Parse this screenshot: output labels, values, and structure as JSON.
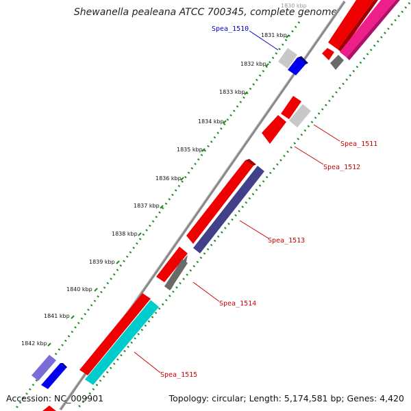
{
  "title": "Shewanella pealeana ATCC 700345, complete genome",
  "accession": "Accession: NC_009901",
  "summary": "Topology: circular; Length: 5,174,581 bp; Genes: 4,420",
  "ticks": [
    "1830 kbp",
    "1831 kbp",
    "1832 kbp",
    "1833 kbp",
    "1834 kbp",
    "1835 kbp",
    "1836 kbp",
    "1837 kbp",
    "1838 kbp",
    "1839 kbp",
    "1840 kbp",
    "1841 kbp",
    "1842 kbp"
  ],
  "gene_labels": [
    {
      "name": "Spea_1510",
      "color": "#0000cc"
    },
    {
      "name": "Spea_1511",
      "color": "#cc0000"
    },
    {
      "name": "Spea_1512",
      "color": "#cc0000"
    },
    {
      "name": "Spea_1513",
      "color": "#cc0000"
    },
    {
      "name": "Spea_1514",
      "color": "#cc0000"
    },
    {
      "name": "Spea_1515",
      "color": "#cc0000"
    }
  ],
  "colors": {
    "backbone": "#8a8a8a",
    "tick_dots": "#1e8a1e",
    "cds_red": "#ee0000",
    "cds_blue": "#0000ee",
    "cds_gray": "#c8c8c8",
    "cds_darkgray": "#6a6a6a",
    "cds_navy": "#43408a",
    "cds_cyan": "#00cccc",
    "cds_pink": "#ee1e8a",
    "cds_purple": "#7b6cd8"
  }
}
